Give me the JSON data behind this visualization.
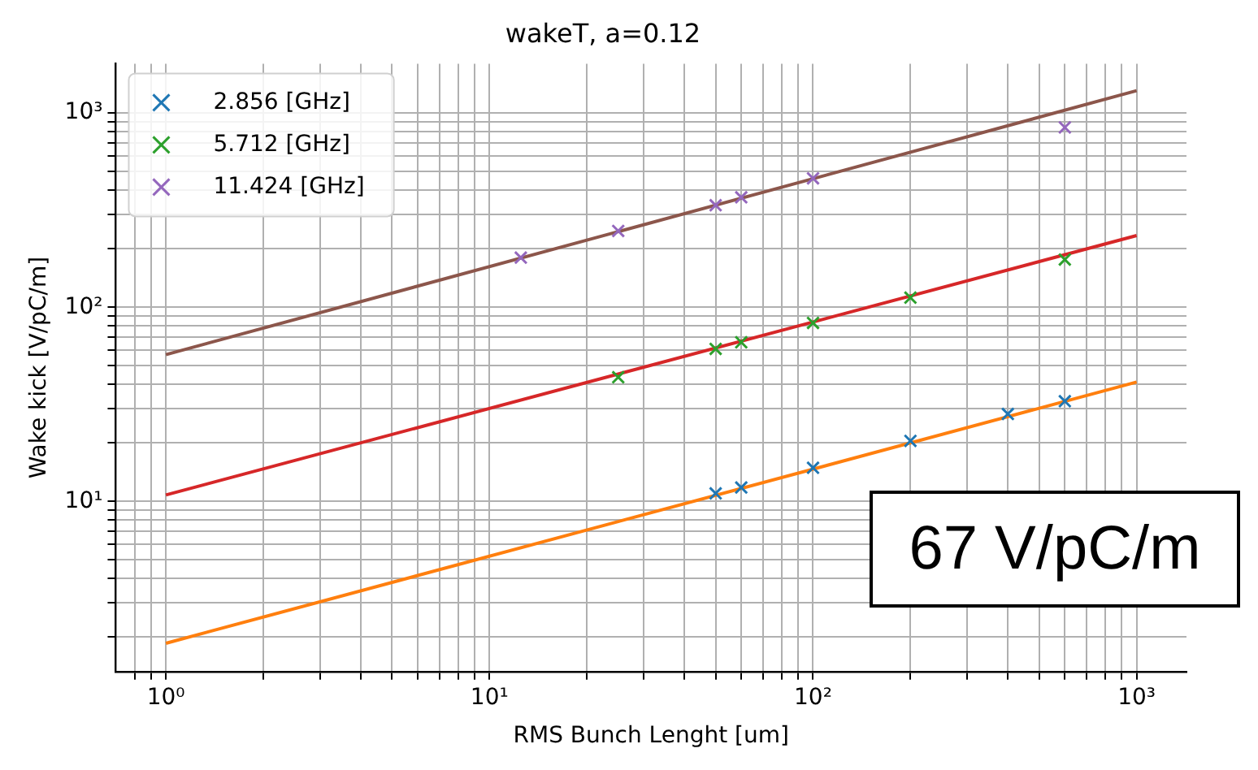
{
  "chart_data": {
    "type": "scatter",
    "title": "wakeT, a=0.12",
    "xlabel": "RMS Bunch Lenght [um]",
    "ylabel": "Wake kick [V/pC/m]",
    "log": "xy",
    "grid": true,
    "legend": "top left",
    "marker": "cross",
    "xlim": [
      0.7,
      1426
    ],
    "ylim": [
      1.33,
      1795
    ],
    "xticks": [
      {
        "value": 0.8,
        "label": null
      },
      {
        "value": 0.9,
        "label": null
      },
      {
        "value": 1,
        "label": "10⁰"
      },
      {
        "value": 2,
        "label": null
      },
      {
        "value": 3,
        "label": null
      },
      {
        "value": 4,
        "label": null
      },
      {
        "value": 5,
        "label": null
      },
      {
        "value": 6,
        "label": null
      },
      {
        "value": 7,
        "label": null
      },
      {
        "value": 8,
        "label": null
      },
      {
        "value": 9,
        "label": null
      },
      {
        "value": 10,
        "label": "10¹"
      },
      {
        "value": 20,
        "label": null
      },
      {
        "value": 30,
        "label": null
      },
      {
        "value": 40,
        "label": null
      },
      {
        "value": 50,
        "label": null
      },
      {
        "value": 60,
        "label": null
      },
      {
        "value": 70,
        "label": null
      },
      {
        "value": 80,
        "label": null
      },
      {
        "value": 90,
        "label": null
      },
      {
        "value": 100,
        "label": "10²"
      },
      {
        "value": 200,
        "label": null
      },
      {
        "value": 300,
        "label": null
      },
      {
        "value": 400,
        "label": null
      },
      {
        "value": 500,
        "label": null
      },
      {
        "value": 600,
        "label": null
      },
      {
        "value": 700,
        "label": null
      },
      {
        "value": 800,
        "label": null
      },
      {
        "value": 900,
        "label": null
      },
      {
        "value": 1000,
        "label": "10³"
      }
    ],
    "yticks": [
      {
        "value": 2,
        "label": null
      },
      {
        "value": 3,
        "label": null
      },
      {
        "value": 4,
        "label": null
      },
      {
        "value": 5,
        "label": null
      },
      {
        "value": 6,
        "label": null
      },
      {
        "value": 7,
        "label": null
      },
      {
        "value": 8,
        "label": null
      },
      {
        "value": 9,
        "label": null
      },
      {
        "value": 10,
        "label": "10¹"
      },
      {
        "value": 20,
        "label": null
      },
      {
        "value": 30,
        "label": null
      },
      {
        "value": 40,
        "label": null
      },
      {
        "value": 50,
        "label": null
      },
      {
        "value": 60,
        "label": null
      },
      {
        "value": 70,
        "label": null
      },
      {
        "value": 80,
        "label": null
      },
      {
        "value": 90,
        "label": null
      },
      {
        "value": 100,
        "label": "10²"
      },
      {
        "value": 200,
        "label": null
      },
      {
        "value": 300,
        "label": null
      },
      {
        "value": 400,
        "label": null
      },
      {
        "value": 500,
        "label": null
      },
      {
        "value": 600,
        "label": null
      },
      {
        "value": 700,
        "label": null
      },
      {
        "value": 800,
        "label": null
      },
      {
        "value": 900,
        "label": null
      },
      {
        "value": 1000,
        "label": "10³"
      }
    ],
    "series": [
      {
        "name": "2.856 [GHz]",
        "color": "#1f77b4",
        "x": [
          50,
          60,
          100,
          200,
          400,
          600
        ],
        "values": [
          11.0,
          11.8,
          14.9,
          20.5,
          28.2,
          32.8
        ]
      },
      {
        "name": "5.712 [GHz]",
        "color": "#2ca02c",
        "x": [
          25,
          50,
          60,
          100,
          200,
          600
        ],
        "values": [
          43.6,
          61,
          66,
          83,
          112,
          176
        ]
      },
      {
        "name": "11.424 [GHz]",
        "color": "#9467bd",
        "x": [
          12.5,
          25,
          50,
          60,
          100,
          600
        ],
        "values": [
          180,
          247,
          335,
          368,
          461,
          843
        ]
      },
      {
        "type": "line",
        "marker": "none",
        "color": "#ff7f0e",
        "x": [
          1,
          1000
        ],
        "values": [
          1.86,
          41.2
        ]
      },
      {
        "type": "line",
        "marker": "none",
        "color": "#d62728",
        "x": [
          1,
          1000
        ],
        "values": [
          10.8,
          234
        ]
      },
      {
        "type": "line",
        "marker": "none",
        "color": "#8c564b",
        "x": [
          1,
          1000
        ],
        "values": [
          57,
          1303
        ]
      }
    ],
    "annotations": [
      "67 V/pC/m"
    ]
  }
}
